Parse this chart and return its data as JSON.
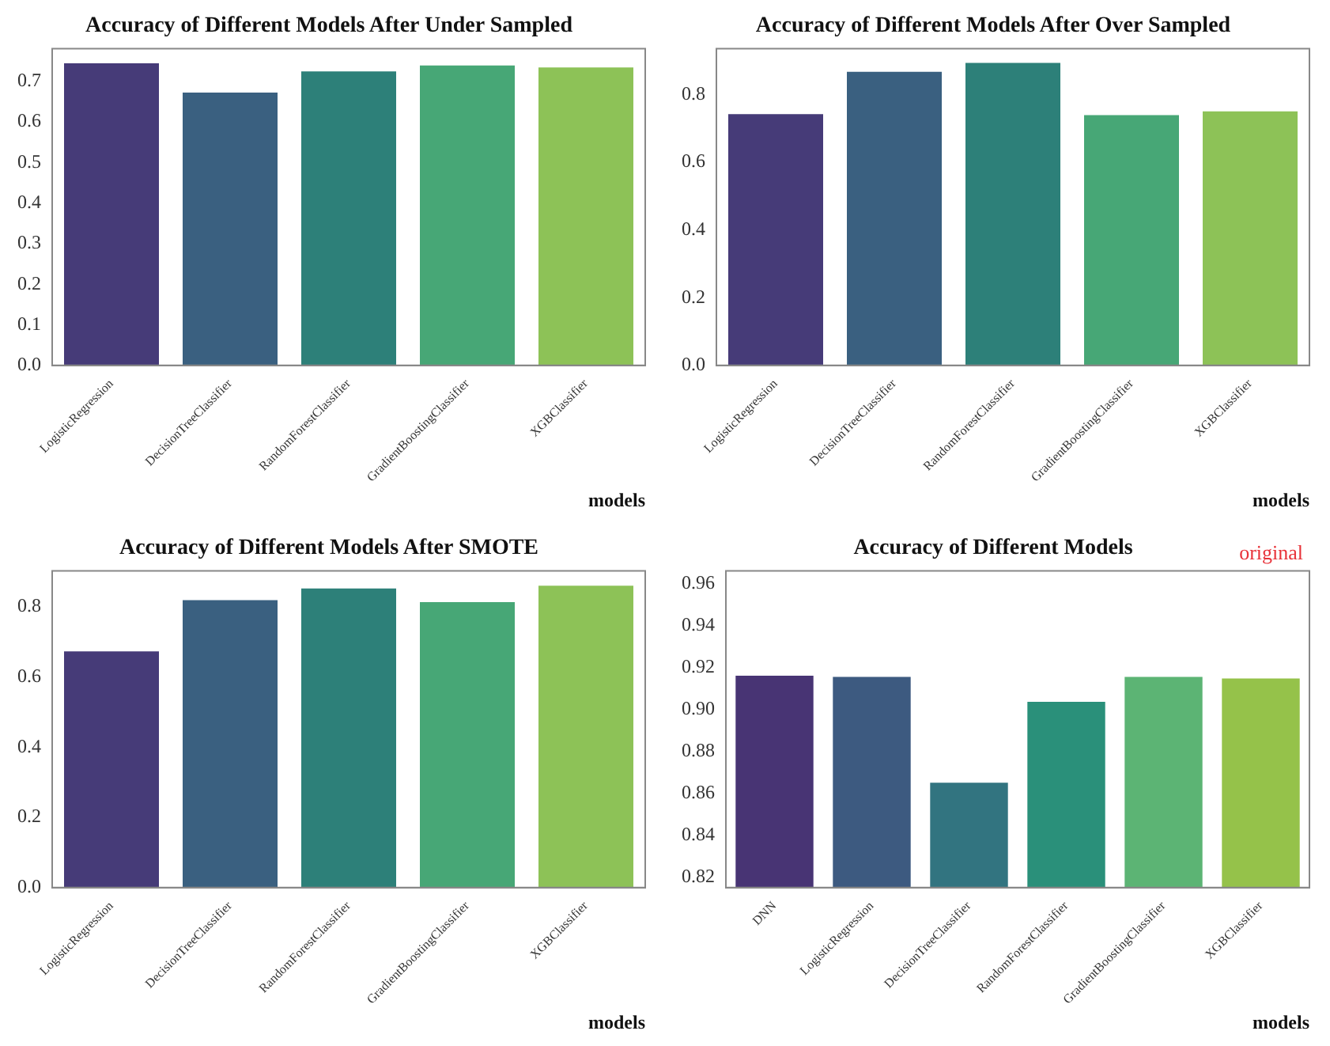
{
  "chart_data": [
    {
      "type": "bar",
      "title": "Accuracy of Different Models After Under Sampled",
      "xlabel": "models",
      "categories": [
        "LogisticRegression",
        "DecisionTreeClassifier",
        "RandomForestClassifier",
        "GradientBoostingClassifier",
        "XGBClassifier"
      ],
      "values": [
        0.744,
        0.672,
        0.724,
        0.739,
        0.734
      ],
      "colors": [
        "#463b78",
        "#3a6080",
        "#2d8079",
        "#47a776",
        "#8dc257"
      ],
      "ylim": [
        0,
        0.78
      ],
      "yticks": [
        {
          "value": 0,
          "label": "0.0"
        },
        0.1,
        0.2,
        0.3,
        0.4,
        0.5,
        0.6,
        0.7
      ]
    },
    {
      "type": "bar",
      "title": "Accuracy of Different Models After Over Sampled",
      "xlabel": "models",
      "categories": [
        "LogisticRegression",
        "DecisionTreeClassifier",
        "RandomForestClassifier",
        "GradientBoostingClassifier",
        "XGBClassifier"
      ],
      "values": [
        0.742,
        0.867,
        0.893,
        0.739,
        0.75
      ],
      "colors": [
        "#463b78",
        "#3a6080",
        "#2d8079",
        "#47a776",
        "#8dc257"
      ],
      "ylim": [
        0,
        0.935
      ],
      "yticks": [
        {
          "value": 0,
          "label": "0.0"
        },
        0.2,
        0.4,
        0.6,
        0.8
      ]
    },
    {
      "type": "bar",
      "title": "Accuracy of Different Models After SMOTE",
      "xlabel": "models",
      "categories": [
        "LogisticRegression",
        "DecisionTreeClassifier",
        "RandomForestClassifier",
        "GradientBoostingClassifier",
        "XGBClassifier"
      ],
      "values": [
        0.673,
        0.819,
        0.852,
        0.813,
        0.86
      ],
      "colors": [
        "#463b78",
        "#3a6080",
        "#2d8079",
        "#47a776",
        "#8dc257"
      ],
      "ylim": [
        0,
        0.902
      ],
      "yticks": [
        {
          "value": 0,
          "label": "0.0"
        },
        0.2,
        0.4,
        0.6,
        0.8
      ]
    },
    {
      "type": "bar",
      "title": "Accuracy of Different Models",
      "xlabel": "models",
      "annotations": [
        "original"
      ],
      "categories": [
        "DNN",
        "LogisticRegression",
        "DecisionTreeClassifier",
        "RandomForestClassifier",
        "GradientBoostingClassifier",
        "XGBClassifier"
      ],
      "values": [
        0.916,
        0.9155,
        0.865,
        0.9036,
        0.9155,
        0.9147
      ],
      "colors": [
        "#483474",
        "#3d5a80",
        "#327480",
        "#2a907a",
        "#5cb474",
        "#95c24a"
      ],
      "ylim": [
        0.815,
        0.966
      ],
      "yticks": [
        {
          "value": 0.82,
          "label": "0.82"
        },
        0.84,
        0.86,
        0.88,
        {
          "value": 0.9,
          "label": "0.90"
        },
        0.92,
        0.94,
        0.96
      ]
    }
  ]
}
